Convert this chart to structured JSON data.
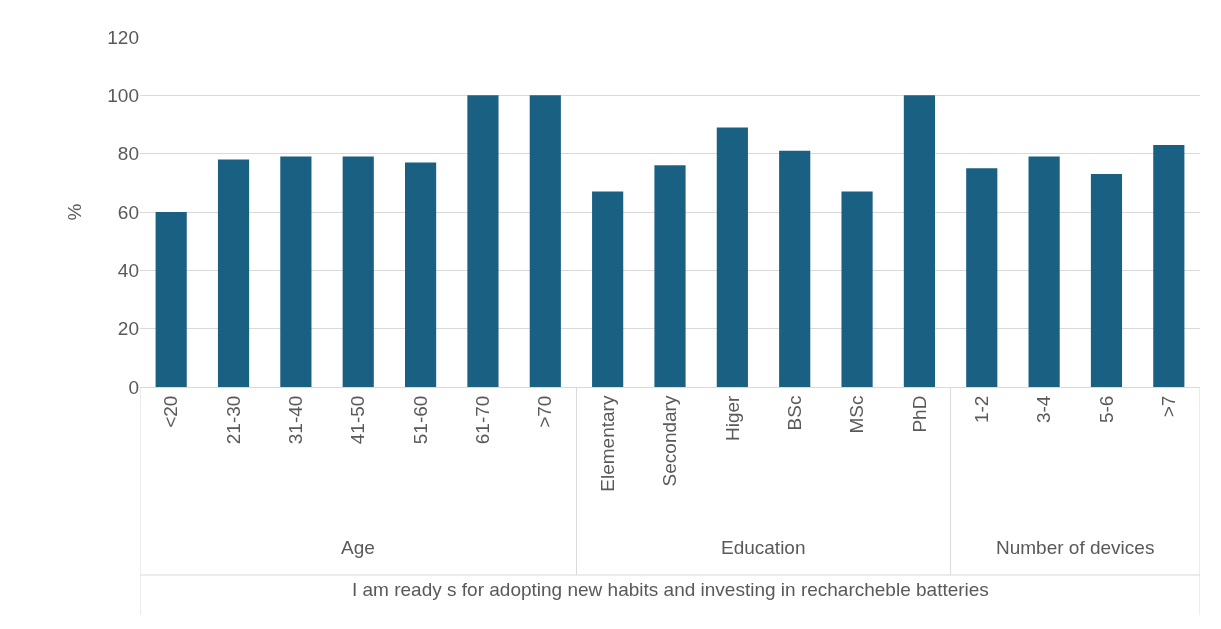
{
  "chart_data": {
    "type": "bar",
    "categories": [
      "<20",
      "21-30",
      "31-40",
      "41-50",
      "51-60",
      "61-70",
      ">70",
      "Elementary",
      "Secondary",
      "Higer",
      "BSc",
      "MSc",
      "PhD",
      "1-2",
      "3-4",
      "5-6",
      ">7"
    ],
    "series": [
      {
        "color": "#1a6082",
        "values": [
          60,
          78,
          79,
          79,
          77,
          100,
          100,
          null,
          null,
          null,
          null,
          null,
          null,
          null,
          null,
          null,
          null
        ]
      },
      {
        "color": "#1a6082",
        "values": [
          null,
          null,
          null,
          null,
          null,
          null,
          null,
          67,
          76,
          89,
          81,
          67,
          100,
          null,
          null,
          null,
          null
        ]
      },
      {
        "color": "#1a6082",
        "values": [
          null,
          null,
          null,
          null,
          null,
          null,
          null,
          null,
          null,
          null,
          null,
          null,
          null,
          75,
          79,
          73,
          83
        ]
      }
    ],
    "annotations": [
      "Age",
      "Education",
      "Number of devices"
    ],
    "xlabel": "I am ready s for adopting new habits and investing in recharcheble batteries",
    "ylabel": "%",
    "ylim": [
      0,
      120
    ],
    "yticks": [
      0,
      20,
      40,
      60,
      80,
      100,
      120
    ],
    "grid": "y",
    "legend": false
  }
}
